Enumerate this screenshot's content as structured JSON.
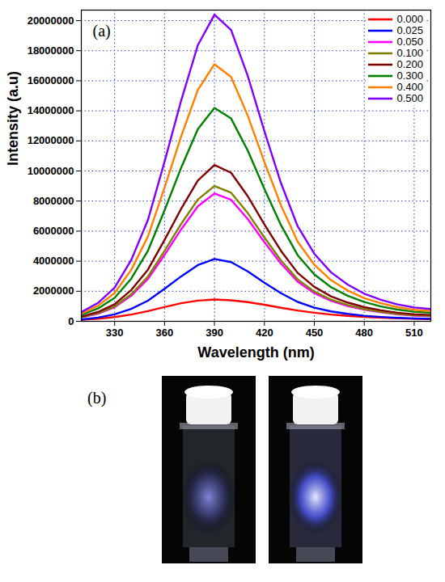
{
  "chart_data": {
    "type": "line",
    "annotation": "(a)",
    "x_label": "Wavelength (nm)",
    "y_label": "Intensity (a.u)",
    "x": [
      310,
      320,
      330,
      340,
      350,
      360,
      370,
      380,
      390,
      400,
      410,
      420,
      430,
      440,
      450,
      460,
      470,
      480,
      490,
      500,
      510,
      520
    ],
    "series": [
      {
        "name": "0.000",
        "color": "#ff0000",
        "values": [
          100000,
          170000,
          280000,
          450000,
          680000,
          950000,
          1200000,
          1380000,
          1450000,
          1400000,
          1280000,
          1100000,
          900000,
          720000,
          570000,
          450000,
          360000,
          290000,
          240000,
          200000,
          170000,
          150000
        ]
      },
      {
        "name": "0.025",
        "color": "#0000ff",
        "values": [
          120000,
          250000,
          460000,
          830000,
          1370000,
          2160000,
          2990000,
          3740000,
          4150000,
          3940000,
          3320000,
          2570000,
          1870000,
          1290000,
          910000,
          660000,
          500000,
          370000,
          290000,
          230000,
          190000,
          170000
        ]
      },
      {
        "name": "0.050",
        "color": "#ff00ff",
        "values": [
          260000,
          510000,
          940000,
          1700000,
          2810000,
          4420000,
          6120000,
          7650000,
          8500000,
          8080000,
          6800000,
          5270000,
          3830000,
          2640000,
          1870000,
          1360000,
          1020000,
          770000,
          600000,
          470000,
          380000,
          340000
        ]
      },
      {
        "name": "0.100",
        "color": "#808000",
        "values": [
          270000,
          540000,
          990000,
          1800000,
          2970000,
          4680000,
          6480000,
          8100000,
          9000000,
          8550000,
          7200000,
          5580000,
          4050000,
          2790000,
          1980000,
          1440000,
          1080000,
          810000,
          630000,
          500000,
          410000,
          360000
        ]
      },
      {
        "name": "0.200",
        "color": "#800000",
        "values": [
          310000,
          620000,
          1140000,
          2080000,
          3430000,
          5410000,
          7490000,
          9360000,
          10400000,
          9880000,
          8320000,
          6450000,
          4680000,
          3220000,
          2290000,
          1660000,
          1250000,
          940000,
          730000,
          570000,
          470000,
          420000
        ]
      },
      {
        "name": "0.300",
        "color": "#008000",
        "values": [
          430000,
          850000,
          1560000,
          2840000,
          4690000,
          7380000,
          10220000,
          12780000,
          14200000,
          13490000,
          11360000,
          8800000,
          6390000,
          4400000,
          3120000,
          2270000,
          1700000,
          1280000,
          990000,
          780000,
          640000,
          570000
        ]
      },
      {
        "name": "0.400",
        "color": "#ff8000",
        "values": [
          510000,
          1030000,
          1880000,
          3420000,
          5640000,
          8890000,
          12310000,
          15390000,
          17100000,
          16250000,
          13680000,
          10600000,
          7700000,
          5300000,
          3760000,
          2740000,
          2050000,
          1540000,
          1200000,
          940000,
          770000,
          680000
        ]
      },
      {
        "name": "0.500",
        "color": "#8000ff",
        "values": [
          610000,
          1220000,
          2240000,
          4080000,
          6730000,
          10610000,
          14690000,
          18360000,
          20400000,
          19380000,
          16320000,
          12650000,
          9180000,
          6320000,
          4490000,
          3260000,
          2450000,
          1840000,
          1430000,
          1120000,
          920000,
          820000
        ]
      }
    ],
    "xlim": [
      310,
      520
    ],
    "xticks": [
      330,
      360,
      390,
      420,
      450,
      480,
      510
    ],
    "ylim": [
      0,
      20700000
    ],
    "yticks": [
      0,
      2000000,
      4000000,
      6000000,
      8000000,
      10000000,
      12000000,
      14000000,
      16000000,
      18000000,
      20000000
    ],
    "grid": true,
    "legend": "top-right"
  },
  "panel_b": {
    "label": "(b)"
  }
}
